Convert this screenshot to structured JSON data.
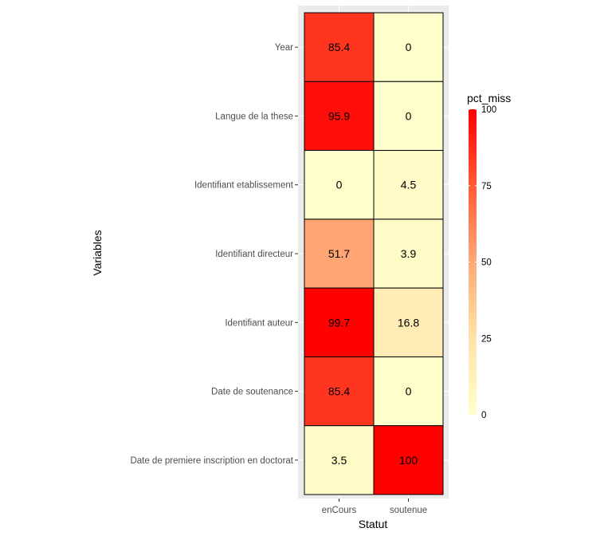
{
  "chart_data": {
    "type": "heatmap",
    "xlabel": "Statut",
    "ylabel": "Variables",
    "x_categories": [
      "enCours",
      "soutenue"
    ],
    "y_categories": [
      "Year",
      "Langue de la these",
      "Identifiant etablissement",
      "Identifiant directeur",
      "Identifiant auteur",
      "Date de soutenance",
      "Date de premiere inscription en doctorat"
    ],
    "values": [
      [
        85.4,
        0
      ],
      [
        95.9,
        0
      ],
      [
        0,
        4.5
      ],
      [
        51.7,
        3.9
      ],
      [
        99.7,
        16.8
      ],
      [
        85.4,
        0
      ],
      [
        3.5,
        100
      ]
    ],
    "value_labels": [
      [
        "85.4",
        "0"
      ],
      [
        "95.9",
        "0"
      ],
      [
        "0",
        "4.5"
      ],
      [
        "51.7",
        "3.9"
      ],
      [
        "99.7",
        "16.8"
      ],
      [
        "85.4",
        "0"
      ],
      [
        "3.5",
        "100"
      ]
    ],
    "legend": {
      "title": "pct_miss",
      "ticks": [
        100,
        75,
        50,
        25,
        0
      ],
      "range": [
        0,
        100
      ],
      "low_color": "#FFFFCC",
      "high_color": "#FF0000",
      "placement": "right"
    },
    "panel_background": "#EBEBEB",
    "grid": true
  }
}
